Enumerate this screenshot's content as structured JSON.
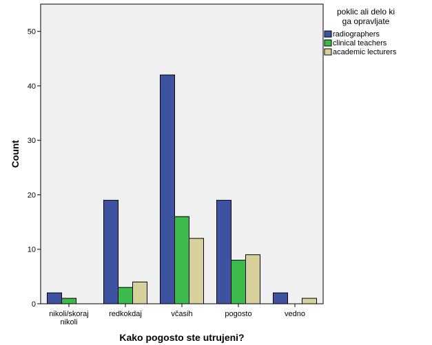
{
  "chart_data": {
    "type": "bar",
    "categories": [
      "nikoli/skoraj nikoli",
      "redkokdaj",
      "včasih",
      "pogosto",
      "vedno"
    ],
    "category_lines": [
      [
        "nikoli/skoraj",
        "nikoli"
      ],
      [
        "redkokdaj"
      ],
      [
        "včasih"
      ],
      [
        "pogosto"
      ],
      [
        "vedno"
      ]
    ],
    "series": [
      {
        "name": "radiographers",
        "values": [
          2,
          19,
          42,
          19,
          2
        ],
        "color": "#3d52a1"
      },
      {
        "name": "clinical teachers",
        "values": [
          1,
          3,
          16,
          8,
          0
        ],
        "color": "#3dba4c"
      },
      {
        "name": "academic lecturers",
        "values": [
          0,
          4,
          12,
          9,
          1
        ],
        "color": "#d6d09a"
      }
    ],
    "xlabel": "Kako pogosto ste utrujeni?",
    "ylabel": "Count",
    "ylim": [
      0,
      55
    ],
    "yticks": [
      0,
      10,
      20,
      30,
      40,
      50
    ],
    "grid": false,
    "plot_background": "#f0f0f0",
    "legend": {
      "title_lines": [
        "poklic ali delo ki",
        "ga opravljate"
      ],
      "placement": "right"
    }
  }
}
